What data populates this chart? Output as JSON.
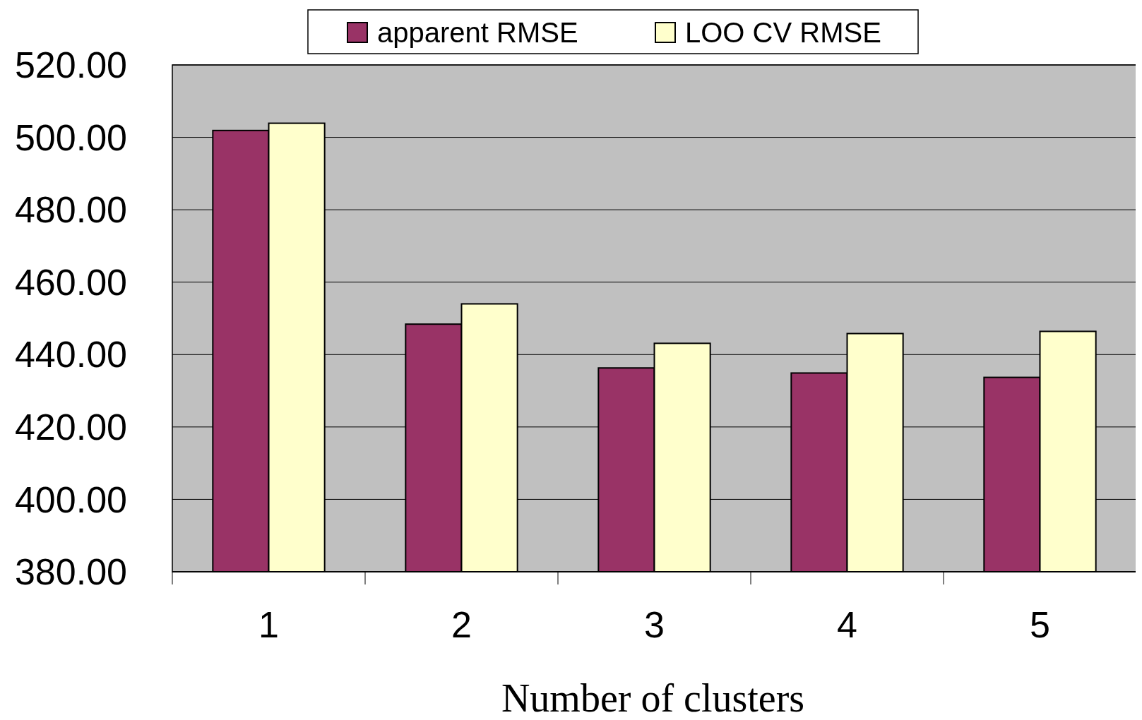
{
  "chart_data": {
    "type": "bar",
    "xlabel": "Number of clusters",
    "categories": [
      "1",
      "2",
      "3",
      "4",
      "5"
    ],
    "series": [
      {
        "name": "apparent RMSE",
        "color": "#993366",
        "values": [
          501.9,
          448.4,
          436.3,
          434.9,
          433.7
        ]
      },
      {
        "name": "LOO CV RMSE",
        "color": "#ffffcc",
        "values": [
          503.9,
          454.0,
          443.1,
          445.8,
          446.4
        ]
      }
    ],
    "ylim": [
      380,
      520
    ],
    "yticks": [
      {
        "value": 380,
        "label": "380.00"
      },
      {
        "value": 400,
        "label": "400.00"
      },
      {
        "value": 420,
        "label": "420.00"
      },
      {
        "value": 440,
        "label": "440.00"
      },
      {
        "value": 460,
        "label": "460.00"
      },
      {
        "value": 480,
        "label": "480.00"
      },
      {
        "value": 500,
        "label": "500.00"
      },
      {
        "value": 520,
        "label": "520.00"
      }
    ],
    "grid": "y",
    "legend": "top"
  }
}
